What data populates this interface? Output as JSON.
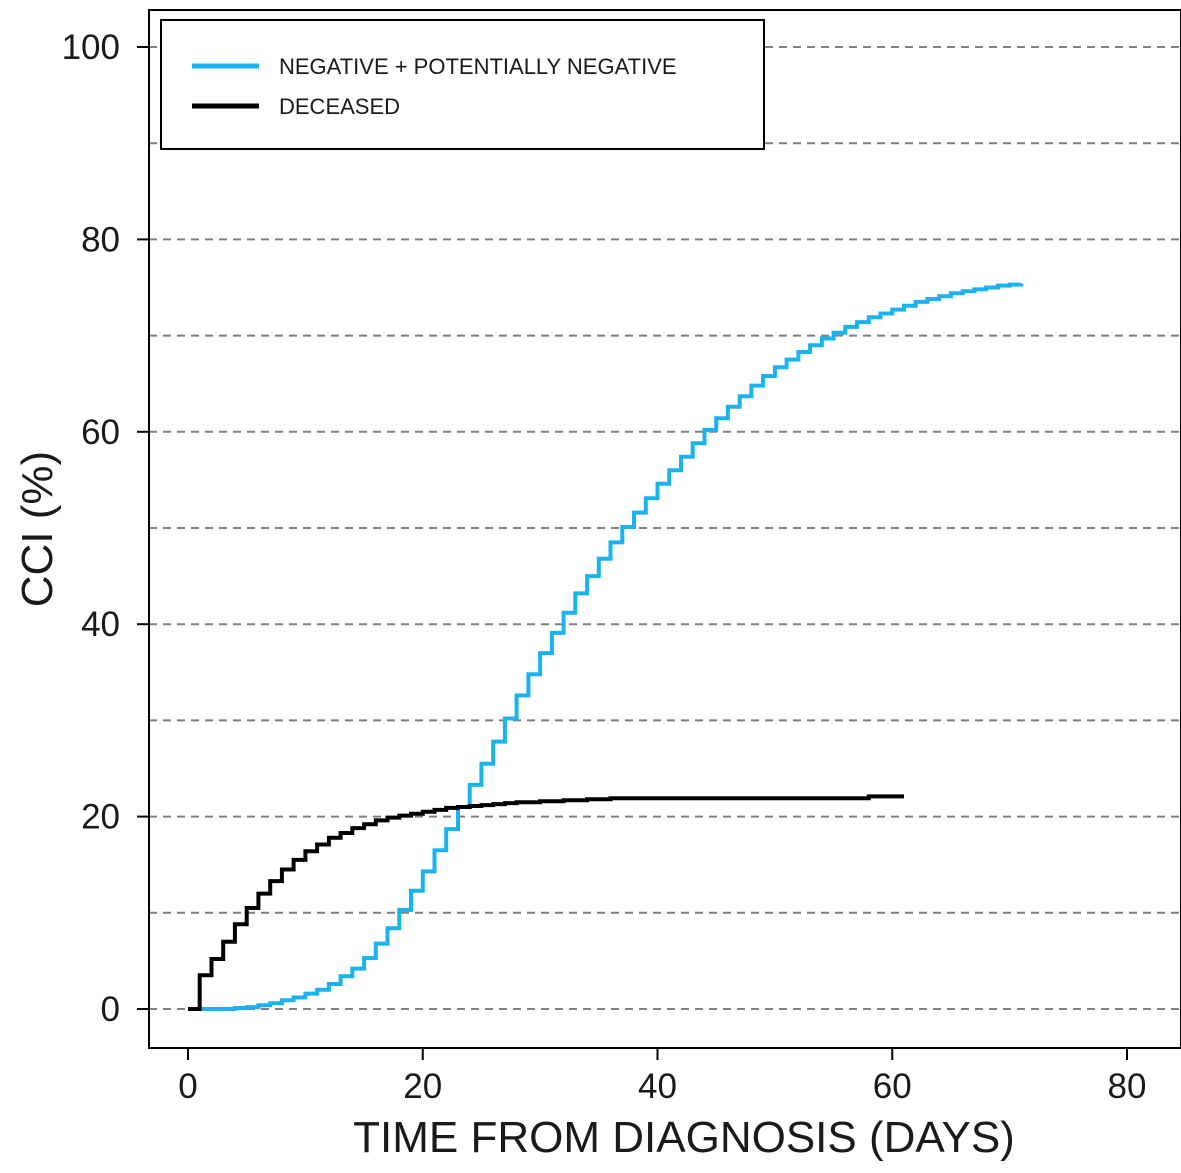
{
  "chart_data": {
    "type": "line",
    "step": true,
    "xlabel": "TIME FROM DIAGNOSIS (DAYS)",
    "ylabel": "CCI (%)",
    "xlim": [
      -3,
      84
    ],
    "ylim": [
      -4,
      104
    ],
    "xticks": [
      0,
      20,
      40,
      60,
      80
    ],
    "yticks": [
      0,
      20,
      40,
      60,
      80,
      100
    ],
    "xtick_labels": [
      "0",
      "20",
      "40",
      "60",
      "80"
    ],
    "ytick_labels": [
      "0",
      "20",
      "40",
      "60",
      "80",
      "100"
    ],
    "grid": "horizontal dashed every 10",
    "grid_lines": [
      0,
      10,
      20,
      30,
      40,
      50,
      60,
      70,
      80,
      90,
      100
    ],
    "legend_position": "top-left",
    "series": [
      {
        "name": "NEGATIVE + POTENTIALLY NEGATIVE",
        "color": "#1ab3f0",
        "x": [
          0,
          1,
          2,
          3,
          4,
          5,
          6,
          7,
          8,
          9,
          10,
          11,
          12,
          13,
          14,
          15,
          16,
          17,
          18,
          19,
          20,
          21,
          22,
          23,
          24,
          25,
          26,
          27,
          28,
          29,
          30,
          31,
          32,
          33,
          34,
          35,
          36,
          37,
          38,
          39,
          40,
          41,
          42,
          43,
          44,
          45,
          46,
          47,
          48,
          49,
          50,
          51,
          52,
          53,
          54,
          55,
          56,
          57,
          58,
          59,
          60,
          61,
          62,
          63,
          64,
          65,
          66,
          67,
          68,
          69,
          70,
          71
        ],
        "y": [
          0,
          0,
          0,
          0,
          0.1,
          0.2,
          0.4,
          0.6,
          0.9,
          1.2,
          1.6,
          2.0,
          2.6,
          3.4,
          4.2,
          5.3,
          6.8,
          8.4,
          10.3,
          12.3,
          14.3,
          16.5,
          18.7,
          21.0,
          23.3,
          25.5,
          27.8,
          30.2,
          32.6,
          34.8,
          37.0,
          39.1,
          41.2,
          43.2,
          45.0,
          46.8,
          48.5,
          50.1,
          51.6,
          53.1,
          54.6,
          56.0,
          57.4,
          58.8,
          60.2,
          61.4,
          62.6,
          63.7,
          64.8,
          65.8,
          66.7,
          67.5,
          68.3,
          69.0,
          69.7,
          70.3,
          70.9,
          71.4,
          71.9,
          72.3,
          72.7,
          73.1,
          73.5,
          73.8,
          74.1,
          74.4,
          74.6,
          74.8,
          75.0,
          75.2,
          75.3,
          75.4
        ]
      },
      {
        "name": "DECEASED",
        "color": "#000000",
        "x": [
          0,
          1,
          2,
          3,
          4,
          5,
          6,
          7,
          8,
          9,
          10,
          11,
          12,
          13,
          14,
          15,
          16,
          17,
          18,
          19,
          20,
          21,
          22,
          23,
          24,
          25,
          26,
          27,
          28,
          29,
          30,
          32,
          34,
          36,
          38,
          40,
          45,
          50,
          55,
          58,
          61
        ],
        "y": [
          0,
          3.5,
          5.2,
          7.0,
          8.8,
          10.5,
          12.0,
          13.3,
          14.5,
          15.5,
          16.4,
          17.1,
          17.8,
          18.3,
          18.8,
          19.2,
          19.6,
          19.9,
          20.1,
          20.3,
          20.5,
          20.7,
          20.9,
          21.0,
          21.1,
          21.2,
          21.3,
          21.4,
          21.5,
          21.5,
          21.6,
          21.7,
          21.8,
          21.9,
          21.9,
          21.9,
          21.9,
          21.9,
          21.9,
          22.1,
          22.1
        ]
      }
    ]
  }
}
